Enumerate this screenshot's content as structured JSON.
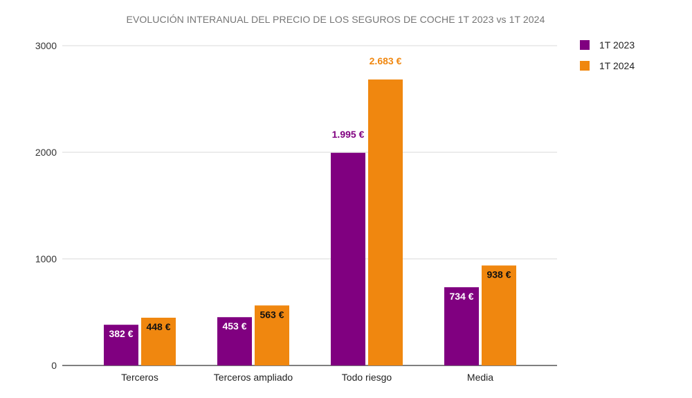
{
  "chart_data": {
    "type": "bar",
    "title": "EVOLUCIÓN INTERANUAL DEL PRECIO DE LOS SEGUROS DE COCHE 1T 2023 vs 1T 2024",
    "categories": [
      "Terceros",
      "Terceros ampliado",
      "Todo riesgo",
      "Media"
    ],
    "series": [
      {
        "name": "1T 2023",
        "color": "#800080",
        "values": [
          382,
          453,
          1995,
          734
        ],
        "labels": [
          "382 €",
          "453 €",
          "1.995 €",
          "734 €"
        ]
      },
      {
        "name": "1T 2024",
        "color": "#F0870F",
        "values": [
          448,
          563,
          2683,
          938
        ],
        "labels": [
          "448 €",
          "563 €",
          "2.683 €",
          "938 €"
        ]
      }
    ],
    "yticks": [
      0,
      1000,
      2000,
      3000
    ],
    "ylim": [
      0,
      3000
    ],
    "xlabel": "",
    "ylabel": "",
    "grid": true,
    "legend_position": "top-right"
  }
}
